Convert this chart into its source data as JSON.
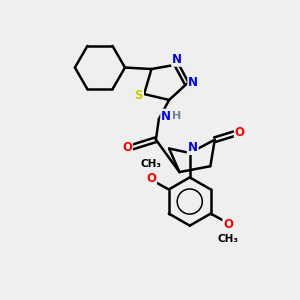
{
  "bg_color": "#efefef",
  "atom_colors": {
    "C": "#000000",
    "N": "#0000ff",
    "O": "#ff0000",
    "S": "#cccc00",
    "H": "#708090"
  },
  "bond_color": "#000000",
  "bond_width": 1.8,
  "figsize": [
    3.0,
    3.0
  ],
  "dpi": 100
}
